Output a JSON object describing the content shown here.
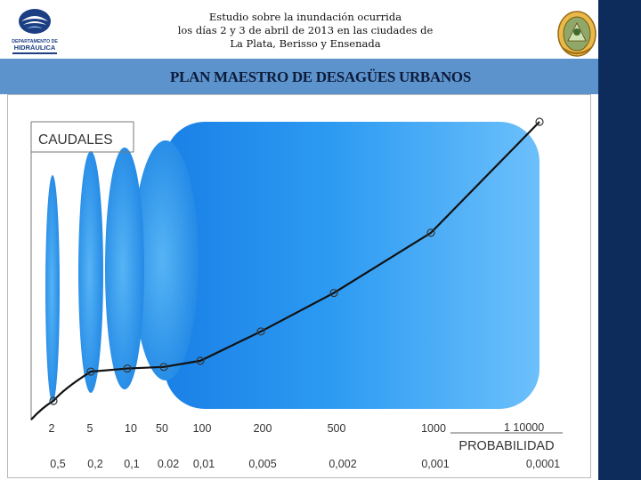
{
  "header": {
    "logo_label": "DEPARTAMENTO DE HIDRÁULICA",
    "title_lines": [
      "Estudio sobre la inundación ocurrida",
      "los días 2 y 3 de abril de 2013 en las ciudades de",
      "La Plata, Berisso y Ensenada"
    ],
    "band_title": "PLAN MAESTRO DE DESAGÜES URBANOS"
  },
  "colors": {
    "accent_band": "#5d93cd",
    "side_bar": "#0d2c5c",
    "bubble_blue": "#1a8be8"
  },
  "chart_data": {
    "type": "line",
    "title": "",
    "ylabel": "CAUDALES",
    "xlabel": "PROBABILIDAD",
    "categories": [
      "2",
      "5",
      "10",
      "50",
      "100",
      "200",
      "500",
      "1000",
      "1 10000"
    ],
    "probabilities": [
      "0,5",
      "0,2",
      "0,1",
      "0.02",
      "0,01",
      "0,005",
      "0,002",
      "0,001",
      "0,0001"
    ],
    "series": [
      {
        "values": [
          0.095,
          0.19,
          0.2,
          0.205,
          0.225,
          0.32,
          0.445,
          0.64,
          1.0
        ]
      }
    ],
    "ylim": [
      0,
      1
    ],
    "grid": false
  }
}
